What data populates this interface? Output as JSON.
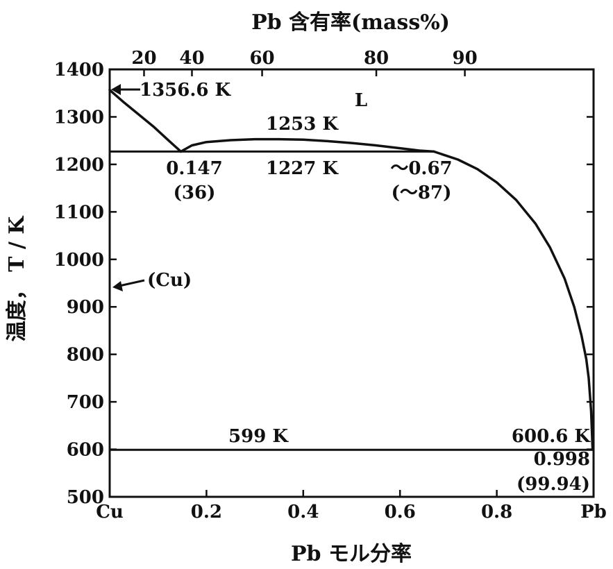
{
  "chart_data": {
    "type": "line",
    "title_top": "Pb 含有率(mass%)",
    "xlabel": "Pb モル分率",
    "ylabel": "温度， T / K",
    "xlim": [
      0,
      1
    ],
    "ylim": [
      500,
      1400
    ],
    "x_ticks": [
      {
        "value": 0,
        "label": "Cu"
      },
      {
        "value": 0.2,
        "label": "0.2"
      },
      {
        "value": 0.4,
        "label": "0.4"
      },
      {
        "value": 0.6,
        "label": "0.6"
      },
      {
        "value": 0.8,
        "label": "0.8"
      },
      {
        "value": 1,
        "label": "Pb"
      }
    ],
    "y_ticks": [
      500,
      600,
      700,
      800,
      900,
      1000,
      1100,
      1200,
      1300,
      1400
    ],
    "top_ticks": [
      {
        "value": 0.071,
        "label": "20"
      },
      {
        "value": 0.17,
        "label": "40"
      },
      {
        "value": 0.315,
        "label": "60"
      },
      {
        "value": 0.551,
        "label": "80"
      },
      {
        "value": 0.734,
        "label": "90"
      }
    ],
    "series": [
      {
        "x": [
          0,
          0.03,
          0.06,
          0.09,
          0.12,
          0.147
        ],
        "y": [
          1356.6,
          1330,
          1305,
          1280,
          1252,
          1227
        ]
      },
      {
        "x": [
          0.147,
          0.17,
          0.2,
          0.25,
          0.3,
          0.35,
          0.4,
          0.45,
          0.5,
          0.55,
          0.6,
          0.64,
          0.67
        ],
        "y": [
          1227,
          1240,
          1247,
          1251,
          1253,
          1253,
          1252,
          1249,
          1245,
          1240,
          1234,
          1229,
          1227
        ]
      },
      {
        "x": [
          0.67,
          0.72,
          0.76,
          0.8,
          0.84,
          0.88,
          0.91,
          0.94,
          0.96,
          0.975,
          0.985,
          0.99,
          0.995,
          0.998
        ],
        "y": [
          1227,
          1210,
          1190,
          1162,
          1125,
          1075,
          1025,
          960,
          900,
          840,
          790,
          750,
          680,
          600.6
        ]
      }
    ],
    "horizontal_lines": [
      {
        "y": 1227,
        "x_from": 0,
        "x_to": 0.67
      },
      {
        "y": 599,
        "x_from": 0,
        "x_to": 1
      }
    ],
    "annotations": {
      "cu_melt": "1356.6 K",
      "liquid": "L",
      "monotectic_max": "1253 K",
      "monotectic": "1227 K",
      "left_point": "0.147",
      "left_point_mass": "(36)",
      "right_point": "～0.67",
      "right_point_mass": "(～87)",
      "cu_phase": "(Cu)",
      "eutectic": "599 K",
      "pb_melt": "600.6 K",
      "eutectic_point": "0.998",
      "eutectic_point_mass": "(99.94)"
    }
  }
}
